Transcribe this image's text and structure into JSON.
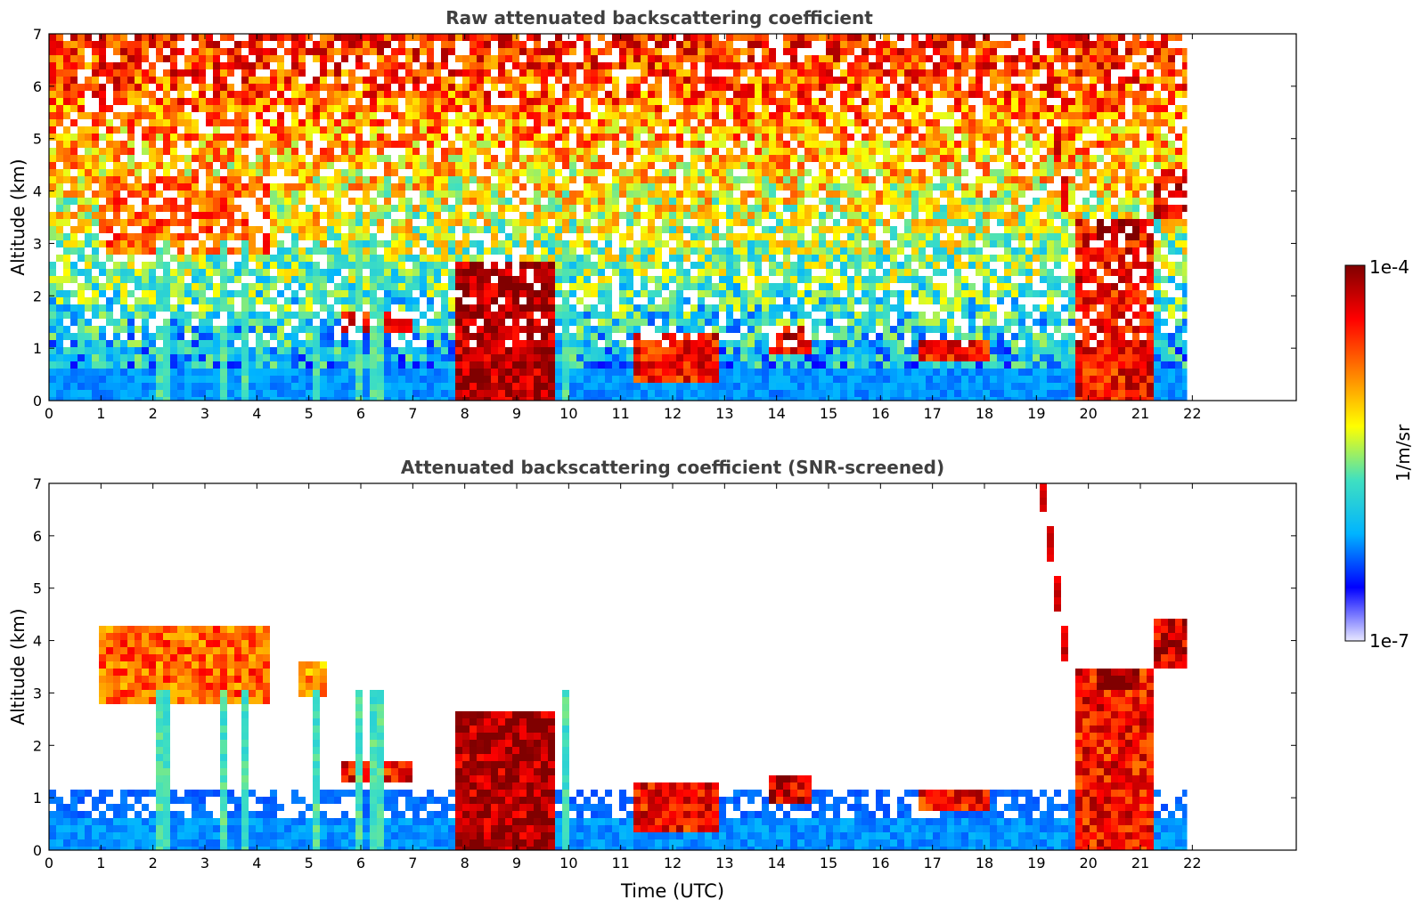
{
  "chart_data": [
    {
      "type": "heatmap",
      "title": "Raw attenuated backscattering coefficient",
      "xlabel": "",
      "ylabel": "Altitude (km)",
      "xlim": [
        0,
        24
      ],
      "ylim": [
        0,
        7
      ],
      "x_ticks": [
        "0",
        "1",
        "2",
        "3",
        "4",
        "5",
        "6",
        "7",
        "8",
        "9",
        "10",
        "11",
        "12",
        "13",
        "14",
        "15",
        "16",
        "17",
        "18",
        "19",
        "20",
        "21",
        "22"
      ],
      "y_ticks": [
        "0",
        "1",
        "2",
        "3",
        "4",
        "5",
        "6",
        "7"
      ],
      "data_extent_hours": [
        0,
        21.9
      ],
      "features": {
        "surface_layer_top_km": 0.6,
        "cloud_bands": [
          {
            "start": 0.9,
            "end": 4.2,
            "base_km": 2.8,
            "top_km": 4.3,
            "intensity": 0.75
          },
          {
            "start": 4.8,
            "end": 5.4,
            "base_km": 2.9,
            "top_km": 3.6,
            "intensity": 0.7
          },
          {
            "start": 5.6,
            "end": 7.0,
            "base_km": 1.3,
            "top_km": 1.7,
            "intensity": 0.85
          },
          {
            "start": 7.8,
            "end": 9.7,
            "base_km": 0.0,
            "top_km": 2.6,
            "intensity": 0.95
          },
          {
            "start": 11.3,
            "end": 12.9,
            "base_km": 0.4,
            "top_km": 1.3,
            "intensity": 0.85
          },
          {
            "start": 13.9,
            "end": 14.7,
            "base_km": 0.9,
            "top_km": 1.4,
            "intensity": 0.9
          },
          {
            "start": 16.7,
            "end": 18.1,
            "base_km": 0.7,
            "top_km": 1.1,
            "intensity": 0.85
          },
          {
            "start": 19.8,
            "end": 21.2,
            "base_km": 0.0,
            "top_km": 3.5,
            "intensity": 0.85
          },
          {
            "start": 20.2,
            "end": 21.0,
            "base_km": 3.1,
            "top_km": 3.5,
            "intensity": 1.0
          },
          {
            "start": 21.3,
            "end": 21.9,
            "base_km": 3.5,
            "top_km": 4.4,
            "intensity": 0.9
          }
        ],
        "vertical_streaks": [
          2.2,
          3.4,
          3.8,
          5.2,
          6.0,
          6.3,
          10.0
        ],
        "high_cirrus": [
          {
            "x1": 19.1,
            "y1": 7.0,
            "x2": 19.6,
            "y2": 3.6
          }
        ]
      }
    },
    {
      "type": "heatmap",
      "title": "Attenuated backscattering coefficient (SNR-screened)",
      "xlabel": "Time (UTC)",
      "ylabel": "Altitude (km)",
      "xlim": [
        0,
        24
      ],
      "ylim": [
        0,
        7
      ],
      "x_ticks": [
        "0",
        "1",
        "2",
        "3",
        "4",
        "5",
        "6",
        "7",
        "8",
        "9",
        "10",
        "11",
        "12",
        "13",
        "14",
        "15",
        "16",
        "17",
        "18",
        "19",
        "20",
        "21",
        "22"
      ],
      "y_ticks": [
        "0",
        "1",
        "2",
        "3",
        "4",
        "5",
        "6",
        "7"
      ],
      "data_extent_hours": [
        0,
        21.9
      ],
      "screened": true
    }
  ],
  "colorbar": {
    "label": "1/m/sr",
    "max_label": "1e-4",
    "min_label": "1e-7",
    "colormap": "jet",
    "colors": [
      "#e8e8ff",
      "#0000ff",
      "#00b4ff",
      "#40e0c0",
      "#ffff00",
      "#ff8000",
      "#ff0000",
      "#800000"
    ]
  }
}
